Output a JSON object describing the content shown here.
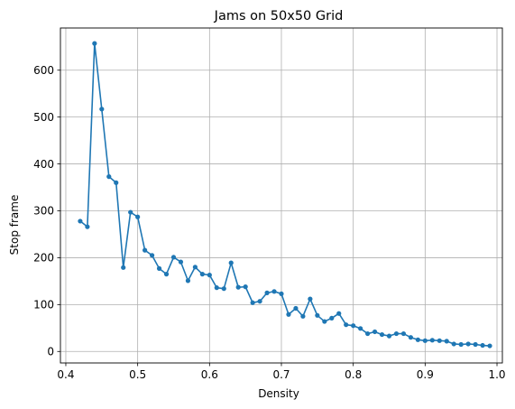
{
  "chart_data": {
    "type": "line",
    "title": "Jams on 50x50 Grid",
    "xlabel": "Density",
    "ylabel": "Stop frame",
    "xlim": [
      0.4,
      1.0
    ],
    "ylim": [
      0,
      650
    ],
    "xticks": [
      0.4,
      0.5,
      0.6,
      0.7,
      0.8,
      0.9,
      1.0
    ],
    "xtick_labels": [
      "0.4",
      "0.5",
      "0.6",
      "0.7",
      "0.8",
      "0.9",
      "1.0"
    ],
    "yticks": [
      0,
      100,
      200,
      300,
      400,
      500,
      600
    ],
    "ytick_labels": [
      "0",
      "100",
      "200",
      "300",
      "400",
      "500",
      "600"
    ],
    "grid": true,
    "legend": "none",
    "series": [
      {
        "color": "#1f77b4",
        "marker": "circle",
        "x": [
          0.42,
          0.43,
          0.44,
          0.45,
          0.46,
          0.47,
          0.48,
          0.49,
          0.5,
          0.51,
          0.52,
          0.53,
          0.54,
          0.55,
          0.56,
          0.57,
          0.58,
          0.59,
          0.6,
          0.61,
          0.62,
          0.63,
          0.64,
          0.65,
          0.66,
          0.67,
          0.68,
          0.69,
          0.7,
          0.71,
          0.72,
          0.73,
          0.74,
          0.75,
          0.76,
          0.77,
          0.78,
          0.79,
          0.8,
          0.81,
          0.82,
          0.83,
          0.84,
          0.85,
          0.86,
          0.87,
          0.88,
          0.89,
          0.9,
          0.91,
          0.92,
          0.93,
          0.94,
          0.95,
          0.96,
          0.97,
          0.98,
          0.99
        ],
        "y": [
          278,
          266,
          657,
          517,
          373,
          360,
          179,
          297,
          287,
          216,
          205,
          177,
          165,
          201,
          191,
          151,
          180,
          165,
          163,
          136,
          134,
          189,
          137,
          138,
          104,
          107,
          125,
          128,
          123,
          79,
          92,
          75,
          112,
          77,
          64,
          71,
          81,
          57,
          55,
          49,
          38,
          42,
          36,
          33,
          38,
          38,
          30,
          25,
          23,
          24,
          23,
          22,
          16,
          15,
          16,
          15,
          13,
          12
        ]
      }
    ]
  }
}
